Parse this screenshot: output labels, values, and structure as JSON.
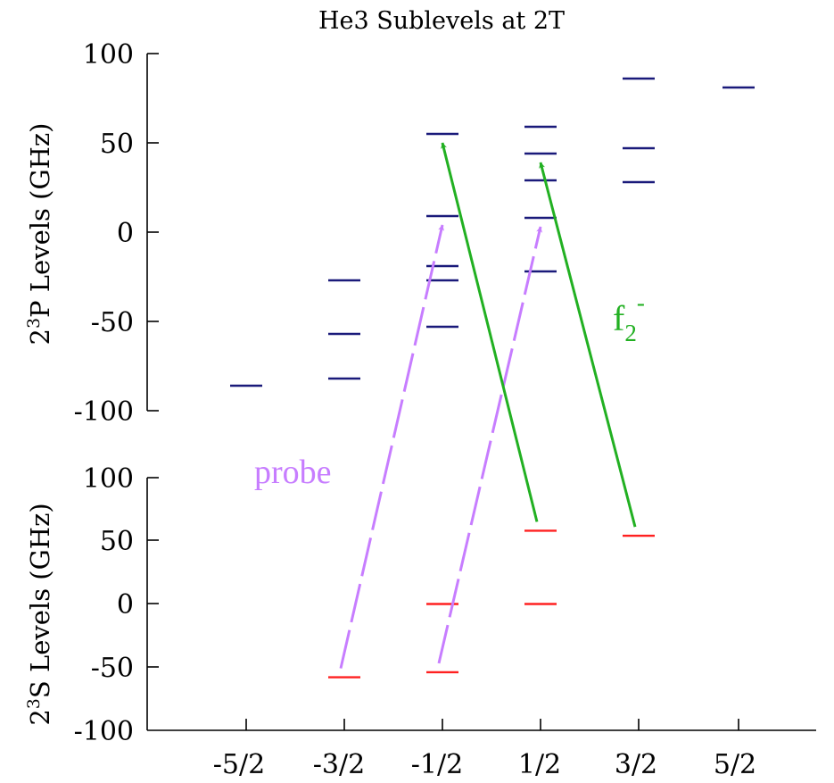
{
  "chart_data": {
    "type": "energy-level diagram",
    "title": "He3 Sublevels at 2T",
    "x_tick_labels": [
      "-5/2",
      "-3/2",
      "-1/2",
      "1/2",
      "3/2",
      "5/2"
    ],
    "panels": {
      "upper": {
        "ylabel_base": "2",
        "ylabel_sup": "3",
        "ylabel_rest": "P Levels (GHz)",
        "ylim": [
          -100,
          100
        ],
        "y_ticks": [
          100,
          50,
          0,
          -50,
          -100
        ],
        "level_color": "#1a1a7a",
        "levels": [
          {
            "mF": "-5/2",
            "energies": [
              -86
            ]
          },
          {
            "mF": "-3/2",
            "energies": [
              -27,
              -57,
              -82
            ]
          },
          {
            "mF": "-1/2",
            "energies": [
              55,
              9,
              -19,
              -27,
              -53
            ]
          },
          {
            "mF": "1/2",
            "energies": [
              59,
              44,
              29,
              8,
              -22
            ]
          },
          {
            "mF": "3/2",
            "energies": [
              86,
              47,
              28
            ]
          },
          {
            "mF": "5/2",
            "energies": [
              81
            ]
          }
        ]
      },
      "lower": {
        "ylabel_base": "2",
        "ylabel_sup": "3",
        "ylabel_rest": "S Levels (GHz)",
        "ylim": [
          -100,
          100
        ],
        "y_ticks": [
          100,
          50,
          0,
          -50,
          -100
        ],
        "level_color": "#ff2020",
        "levels": [
          {
            "mF": "-3/2",
            "energies": [
              -58
            ]
          },
          {
            "mF": "-1/2",
            "energies": [
              0,
              -54
            ]
          },
          {
            "mF": "1/2",
            "energies": [
              58,
              0
            ]
          },
          {
            "mF": "3/2",
            "energies": [
              54
            ]
          }
        ]
      }
    },
    "transitions": [
      {
        "name": "probe",
        "color": "#c77dff",
        "style": "dashed",
        "from": {
          "mF": "-3/2",
          "panel": "lower",
          "energy": -58
        },
        "to": {
          "mF": "-1/2",
          "panel": "upper",
          "energy": 9
        }
      },
      {
        "name": "probe",
        "color": "#c77dff",
        "style": "dashed",
        "from": {
          "mF": "-1/2",
          "panel": "lower",
          "energy": -54
        },
        "to": {
          "mF": "1/2",
          "panel": "upper",
          "energy": 8
        }
      },
      {
        "name": "f2-",
        "color": "#22b022",
        "style": "solid",
        "from": {
          "mF": "1/2",
          "panel": "lower",
          "energy": 58
        },
        "to": {
          "mF": "-1/2",
          "panel": "upper",
          "energy": 55
        }
      },
      {
        "name": "f2-",
        "color": "#22b022",
        "style": "solid",
        "from": {
          "mF": "3/2",
          "panel": "lower",
          "energy": 54
        },
        "to": {
          "mF": "1/2",
          "panel": "upper",
          "energy": 44
        }
      }
    ],
    "annotations": {
      "probe_label": "probe",
      "f2_base": "f",
      "f2_sub": "2",
      "f2_sup": "-"
    }
  }
}
